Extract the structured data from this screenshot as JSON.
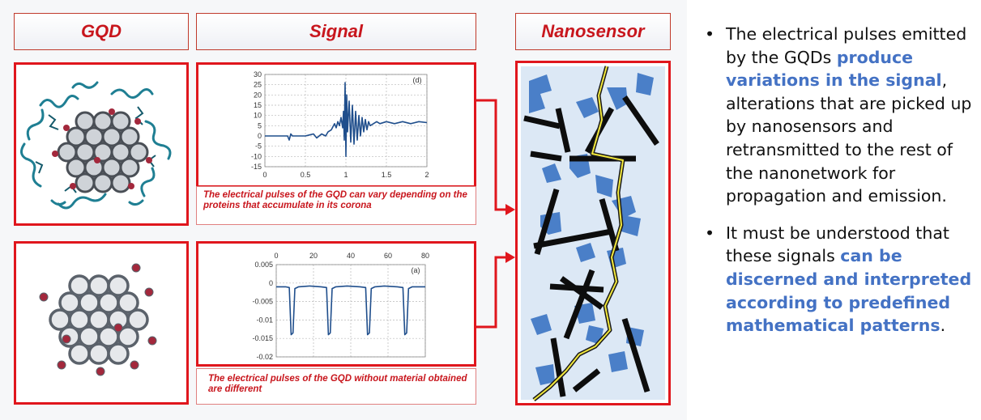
{
  "headers": {
    "gqd": "GQD",
    "signal": "Signal",
    "nanosensor": "Nanosensor"
  },
  "captions": {
    "top": "The electrical pulses of the GQD can vary depending on the proteins that accumulate in its corona",
    "bottom": "The electrical pulses of the GQD without material obtained are different"
  },
  "colors": {
    "accent_red": "#e0161d",
    "highlight_blue": "#4472c4",
    "signal_blue": "#1f4e8c",
    "sensor_bg": "#dce8f5"
  },
  "bullets": [
    {
      "pre": "The electrical pulses emitted by the GQDs ",
      "hl": "produce variations in the signal",
      "post": ", alterations that are picked up by nanosensors and retransmitted to the rest of the nanonetwork for propagation and emission."
    },
    {
      "pre": "It must be understood that these signals ",
      "hl": "can be discerned and interpreted according to predefined mathematical patterns",
      "post": "."
    }
  ],
  "chart_data": [
    {
      "type": "line",
      "label": "(d)",
      "xlim": [
        0,
        2
      ],
      "ylim": [
        -15,
        30
      ],
      "x_ticks": [
        "0",
        "0.5",
        "1",
        "1.5",
        "2"
      ],
      "y_ticks": [
        "-15",
        "-10",
        "-5",
        "0",
        "5",
        "10",
        "15",
        "20",
        "25",
        "30"
      ],
      "x": [
        0,
        0.28,
        0.3,
        0.32,
        0.34,
        0.5,
        0.6,
        0.64,
        0.7,
        0.75,
        0.78,
        0.82,
        0.86,
        0.88,
        0.9,
        0.92,
        0.94,
        0.96,
        0.97,
        0.98,
        0.99,
        1.0,
        1.01,
        1.02,
        1.04,
        1.06,
        1.08,
        1.1,
        1.12,
        1.14,
        1.16,
        1.18,
        1.2,
        1.22,
        1.24,
        1.26,
        1.28,
        1.3,
        1.34,
        1.38,
        1.42,
        1.5,
        1.6,
        1.7,
        1.8,
        1.9,
        2.0
      ],
      "y": [
        0,
        0,
        -2,
        1,
        0,
        0,
        1,
        -1,
        1,
        0,
        2,
        3,
        6,
        4,
        7,
        5,
        9,
        4,
        12,
        -2,
        26,
        -10,
        20,
        2,
        17,
        -3,
        15,
        -4,
        12,
        -2,
        10,
        0,
        9,
        2,
        8,
        3,
        7,
        5,
        6,
        7,
        6,
        7,
        6,
        7,
        6,
        7,
        6.5
      ]
    },
    {
      "type": "line",
      "label": "(a)",
      "xlim": [
        0,
        80
      ],
      "ylim": [
        -0.02,
        0.005
      ],
      "x_ticks": [
        "0",
        "20",
        "40",
        "60",
        "80"
      ],
      "y_ticks": [
        "0.005",
        "0",
        "-0.005",
        "-0.01",
        "-0.015",
        "-0.02"
      ],
      "x": [
        0,
        5,
        7,
        8,
        9,
        10,
        12,
        18,
        24,
        27,
        28,
        29,
        30,
        32,
        38,
        45,
        48,
        49,
        50,
        51,
        53,
        58,
        65,
        68,
        69,
        70,
        71,
        73,
        80
      ],
      "y": [
        -0.001,
        -0.001,
        -0.0012,
        -0.014,
        -0.0135,
        -0.0015,
        -0.001,
        -0.0008,
        -0.001,
        -0.0012,
        -0.014,
        -0.0135,
        -0.0015,
        -0.001,
        -0.0008,
        -0.001,
        -0.0012,
        -0.014,
        -0.0135,
        -0.0015,
        -0.001,
        -0.0008,
        -0.001,
        -0.0012,
        -0.014,
        -0.0135,
        -0.0015,
        -0.001,
        -0.001
      ]
    }
  ]
}
